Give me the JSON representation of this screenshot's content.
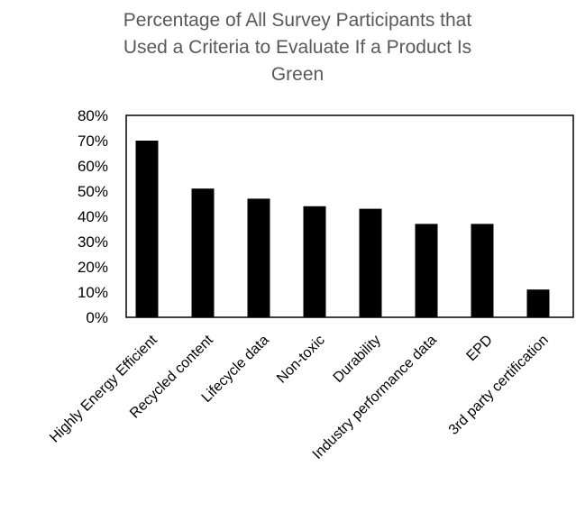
{
  "chart_data": {
    "type": "bar",
    "title": "Percentage of All Survey Participants that\nUsed a Criteria to Evaluate If a Product Is\nGreen",
    "xlabel": "",
    "ylabel": "",
    "categories": [
      "Highly Energy Efficient",
      "Recycled content",
      "Lifecycle data",
      "Non-toxic",
      "Durability",
      "Industry performance data",
      "EPD",
      "3rd party certification"
    ],
    "values": [
      70,
      51,
      47,
      44,
      43,
      37,
      37,
      11
    ],
    "ylim": [
      0,
      80
    ],
    "yticks": [
      0,
      10,
      20,
      30,
      40,
      50,
      60,
      70,
      80
    ],
    "ytick_format": "percent",
    "grid": false,
    "legend": "none",
    "bar_color": "#000000",
    "title_color": "#595959"
  }
}
